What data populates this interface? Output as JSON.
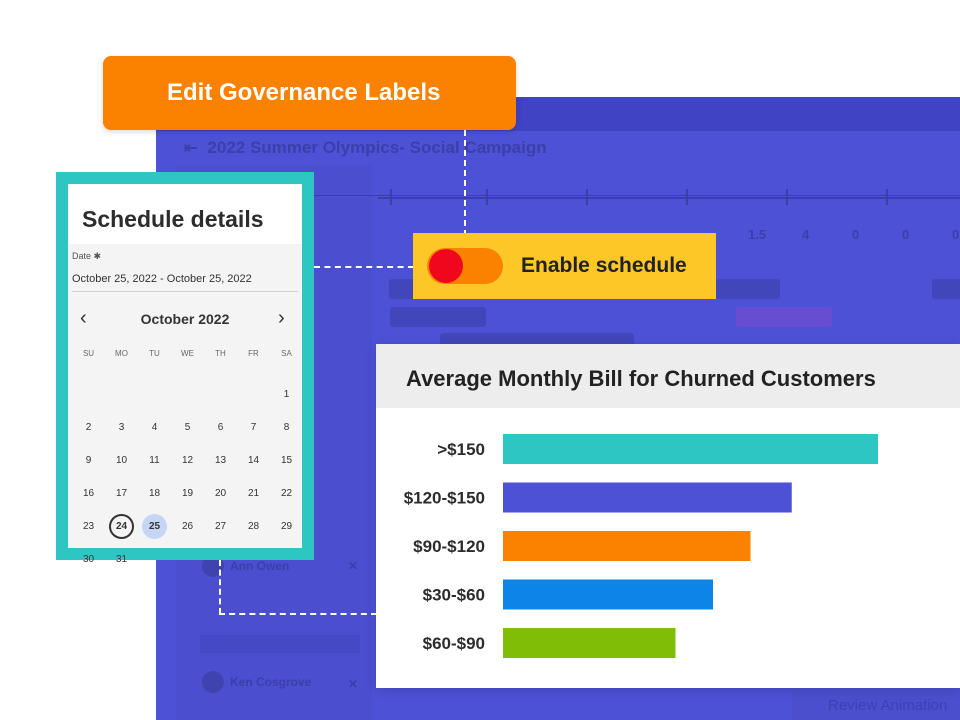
{
  "app": {
    "title": "2022 Summer Olympics- Social Campaign",
    "timeline_numbers": [
      "1.5",
      "4",
      "0",
      "0",
      "0"
    ],
    "people": [
      "Ann Owen",
      "Ken Cosgrove"
    ],
    "review_button": "Review Animation"
  },
  "governance": {
    "label": "Edit Governance Labels"
  },
  "schedule": {
    "title": "Schedule details",
    "date_label": "Date ✱",
    "date_value": "October 25, 2022 - October 25, 2022",
    "month": "October 2022",
    "prev_icon": "‹",
    "next_icon": "›",
    "weekdays": [
      "SU",
      "MO",
      "TU",
      "WE",
      "TH",
      "FR",
      "SA"
    ],
    "days": [
      [
        "",
        "",
        "",
        "",
        "",
        "",
        "1"
      ],
      [
        "2",
        "3",
        "4",
        "5",
        "6",
        "7",
        "8"
      ],
      [
        "9",
        "10",
        "11",
        "12",
        "13",
        "14",
        "15"
      ],
      [
        "16",
        "17",
        "18",
        "19",
        "20",
        "21",
        "22"
      ],
      [
        "23",
        "24",
        "25",
        "26",
        "27",
        "28",
        "29"
      ],
      [
        "30",
        "31",
        "",
        "",
        "",
        "",
        ""
      ]
    ],
    "today": "24",
    "selected": "25"
  },
  "enable_schedule": {
    "label": "Enable schedule",
    "toggle_on": true,
    "knob_color": "#f0071e",
    "track_color": "#fb8200"
  },
  "chart_data": {
    "type": "bar",
    "orientation": "horizontal",
    "title": "Average Monthly Bill for Churned Customers",
    "categories": [
      ">$150",
      "$120-$150",
      "$90-$120",
      "$30-$60",
      "$60-$90"
    ],
    "values": [
      100,
      77,
      66,
      56,
      46
    ],
    "colors": [
      "#2dc6c2",
      "#4d51d6",
      "#fb8200",
      "#0d84e8",
      "#7fbd06"
    ],
    "xlim": [
      0,
      100
    ],
    "grid": false
  }
}
